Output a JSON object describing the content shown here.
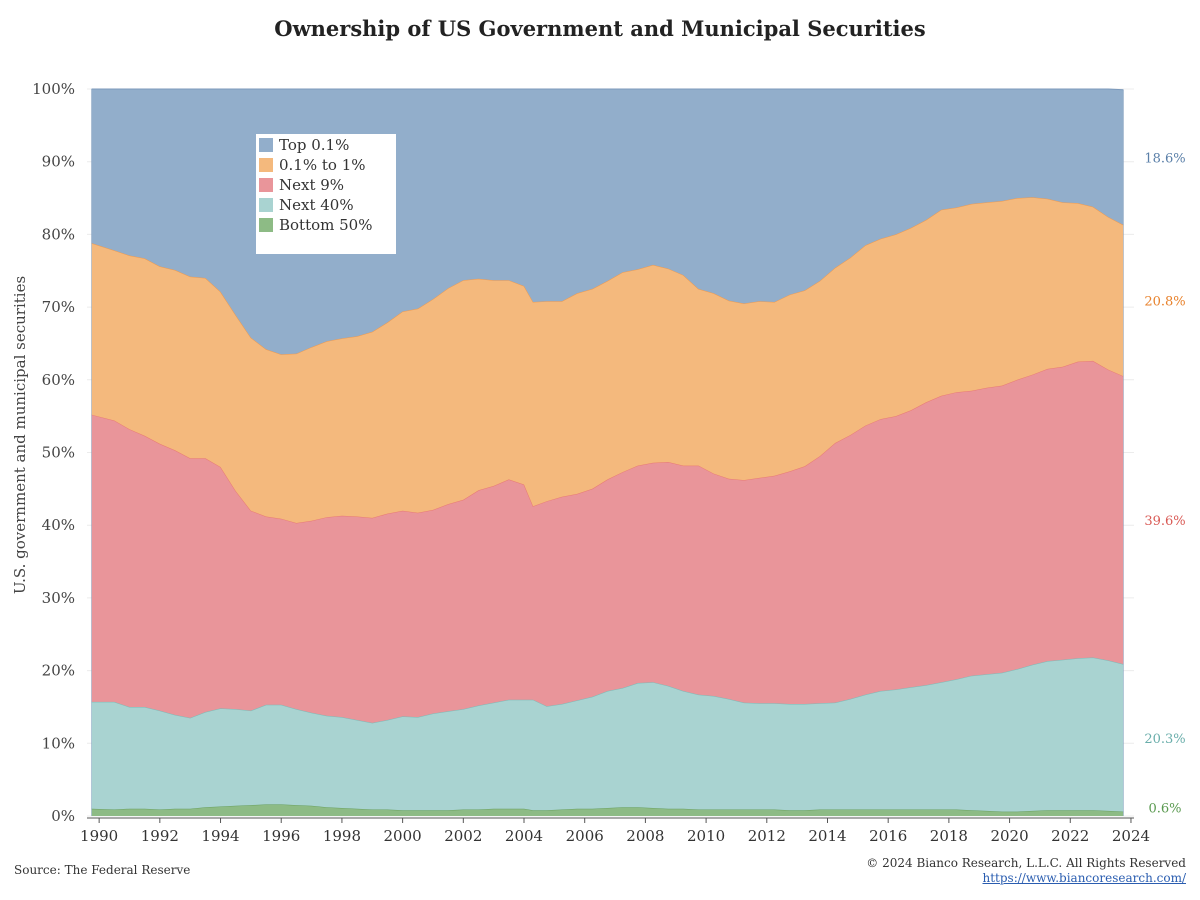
{
  "title": "Ownership of US Government and Municipal Securities",
  "footer": {
    "source": "Source: The Federal Reserve",
    "copyright": "© 2024 Bianco Research, L.L.C. All Rights Reserved",
    "url": "https://www.biancoresearch.com/"
  },
  "chart_data": {
    "type": "area",
    "stacked": true,
    "percent": true,
    "ylabel": "U.S. government and municipal securities",
    "ylim": [
      0,
      100
    ],
    "yticks": [
      "0%",
      "10%",
      "20%",
      "30%",
      "40%",
      "50%",
      "60%",
      "70%",
      "80%",
      "90%",
      "100%"
    ],
    "xticks": [
      "1990",
      "1992",
      "1994",
      "1996",
      "1998",
      "2000",
      "2002",
      "2004",
      "2006",
      "2008",
      "2010",
      "2012",
      "2014",
      "2016",
      "2018",
      "2020",
      "2022",
      "2024"
    ],
    "xlim": [
      1989.6,
      2024.1
    ],
    "legend_position": "top-left",
    "x": [
      1989.75,
      1990.5,
      1991.0,
      1991.5,
      1992.0,
      1992.5,
      1993.0,
      1993.5,
      1994.0,
      1994.5,
      1995.0,
      1995.5,
      1996.0,
      1996.5,
      1997.0,
      1997.5,
      1998.0,
      1998.5,
      1999.0,
      1999.5,
      2000.0,
      2000.5,
      2001.0,
      2001.5,
      2002.0,
      2002.5,
      2003.0,
      2003.5,
      2004.0,
      2004.3,
      2004.75,
      2005.25,
      2005.75,
      2006.25,
      2006.75,
      2007.25,
      2007.75,
      2008.25,
      2008.75,
      2009.25,
      2009.75,
      2010.25,
      2010.75,
      2011.25,
      2011.75,
      2012.25,
      2012.75,
      2013.25,
      2013.75,
      2014.25,
      2014.75,
      2015.25,
      2015.75,
      2016.25,
      2016.75,
      2017.25,
      2017.75,
      2018.25,
      2018.75,
      2019.25,
      2019.75,
      2020.25,
      2020.75,
      2021.25,
      2021.75,
      2022.25,
      2022.75,
      2023.25,
      2023.75
    ],
    "series": [
      {
        "name": "Bottom 50%",
        "color": "#8dbb85",
        "line_color": "#6aa060",
        "label": "0.6%",
        "label_color": "#5a9a50",
        "values": [
          1.0,
          0.9,
          1.0,
          1.0,
          0.9,
          1.0,
          1.0,
          1.2,
          1.3,
          1.4,
          1.5,
          1.6,
          1.6,
          1.5,
          1.4,
          1.2,
          1.1,
          1.0,
          0.9,
          0.9,
          0.8,
          0.8,
          0.8,
          0.8,
          0.9,
          0.9,
          1.0,
          1.0,
          1.0,
          0.8,
          0.8,
          0.9,
          1.0,
          1.0,
          1.1,
          1.2,
          1.2,
          1.1,
          1.0,
          1.0,
          0.9,
          0.9,
          0.9,
          0.9,
          0.9,
          0.9,
          0.8,
          0.8,
          0.9,
          0.9,
          0.9,
          0.9,
          0.9,
          0.9,
          0.9,
          0.9,
          0.9,
          0.9,
          0.8,
          0.7,
          0.6,
          0.6,
          0.7,
          0.8,
          0.8,
          0.8,
          0.8,
          0.7,
          0.6
        ]
      },
      {
        "name": "Next 40%",
        "color": "#a9d3d1",
        "line_color": "#7dbab7",
        "label": "20.3%",
        "label_color": "#6aaeab",
        "values": [
          14.7,
          14.8,
          14.0,
          14.0,
          13.6,
          12.9,
          12.5,
          13.1,
          13.5,
          13.3,
          13.0,
          13.7,
          13.7,
          13.2,
          12.8,
          12.6,
          12.5,
          12.2,
          11.9,
          12.3,
          12.9,
          12.8,
          13.3,
          13.6,
          13.8,
          14.3,
          14.6,
          15.0,
          15.0,
          15.2,
          14.3,
          14.5,
          14.9,
          15.4,
          16.1,
          16.4,
          17.1,
          17.3,
          16.9,
          16.2,
          15.8,
          15.6,
          15.2,
          14.7,
          14.6,
          14.6,
          14.6,
          14.6,
          14.6,
          14.7,
          15.2,
          15.8,
          16.3,
          16.5,
          16.8,
          17.1,
          17.5,
          17.9,
          18.5,
          18.8,
          19.1,
          19.6,
          20.1,
          20.5,
          20.7,
          20.9,
          21.0,
          20.7,
          20.3
        ]
      },
      {
        "name": "Next 9%",
        "color": "#e9959a",
        "line_color": "#e87a74",
        "label": "39.6%",
        "label_color": "#d95a55",
        "values": [
          39.5,
          38.7,
          38.2,
          37.3,
          36.7,
          36.4,
          35.7,
          34.9,
          33.2,
          30.0,
          27.5,
          25.9,
          25.6,
          25.6,
          26.4,
          27.3,
          27.7,
          28.0,
          28.2,
          28.4,
          28.3,
          28.1,
          28.0,
          28.5,
          28.8,
          29.6,
          29.8,
          30.3,
          29.6,
          26.6,
          28.2,
          28.5,
          28.4,
          28.6,
          29.1,
          29.7,
          29.9,
          30.2,
          30.8,
          31.0,
          31.5,
          30.6,
          30.3,
          30.6,
          31.0,
          31.3,
          32.0,
          32.7,
          34.0,
          35.7,
          36.3,
          37.0,
          37.4,
          37.6,
          38.1,
          38.9,
          39.4,
          39.5,
          39.2,
          39.4,
          39.5,
          39.8,
          39.9,
          40.2,
          40.3,
          40.8,
          40.8,
          40.0,
          39.6
        ]
      },
      {
        "name": "0.1% to 1%",
        "color": "#f4b97d",
        "line_color": "#f09a4e",
        "label": "20.8%",
        "label_color": "#e8822c",
        "values": [
          23.6,
          23.4,
          23.9,
          24.4,
          24.4,
          24.8,
          25.0,
          24.8,
          24.1,
          24.2,
          23.8,
          23.0,
          22.6,
          23.3,
          23.9,
          24.2,
          24.4,
          24.8,
          25.6,
          26.3,
          27.4,
          28.1,
          29.0,
          29.7,
          30.2,
          29.1,
          28.3,
          27.4,
          27.3,
          28.1,
          27.5,
          26.9,
          27.6,
          27.5,
          27.3,
          27.5,
          27.0,
          27.2,
          26.6,
          26.2,
          24.3,
          24.8,
          24.5,
          24.3,
          24.3,
          23.9,
          24.3,
          24.2,
          24.1,
          24.1,
          24.4,
          24.8,
          24.8,
          25.0,
          25.1,
          25.1,
          25.6,
          25.4,
          25.7,
          25.5,
          25.4,
          25.0,
          24.4,
          23.4,
          22.6,
          21.8,
          21.2,
          21.0,
          20.8
        ]
      },
      {
        "name": "Top 0.1%",
        "color": "#92aecb",
        "line_color": "#7c99bb",
        "label": "18.6%",
        "label_color": "#5a7fa8",
        "values": [
          21.2,
          22.2,
          22.9,
          23.3,
          24.4,
          24.9,
          25.8,
          26.0,
          27.9,
          31.1,
          34.2,
          35.8,
          36.5,
          36.4,
          35.5,
          34.7,
          34.3,
          34.0,
          33.4,
          32.1,
          30.6,
          30.2,
          28.9,
          27.4,
          26.3,
          26.1,
          26.3,
          26.3,
          27.1,
          29.3,
          29.2,
          29.2,
          28.1,
          27.5,
          26.4,
          25.2,
          24.8,
          24.2,
          24.7,
          25.6,
          27.5,
          28.1,
          29.1,
          29.5,
          29.2,
          29.3,
          28.3,
          27.7,
          26.4,
          24.6,
          23.2,
          21.5,
          20.6,
          20.0,
          19.1,
          18.0,
          16.6,
          16.3,
          15.8,
          15.6,
          15.4,
          15.0,
          14.9,
          15.1,
          15.6,
          15.7,
          16.2,
          17.6,
          18.6
        ]
      }
    ]
  }
}
